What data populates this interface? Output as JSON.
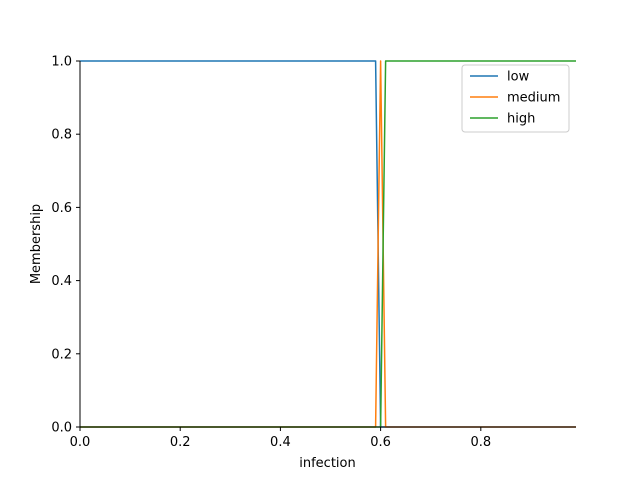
{
  "chart_data": {
    "type": "line",
    "title": "",
    "xlabel": "infection",
    "ylabel": "Membership",
    "xlim": [
      0.0,
      0.99
    ],
    "ylim": [
      0.0,
      1.0
    ],
    "xticks": [
      0.0,
      0.2,
      0.4,
      0.6,
      0.8
    ],
    "xtick_labels": [
      "0.0",
      "0.2",
      "0.4",
      "0.6",
      "0.8"
    ],
    "yticks": [
      0.0,
      0.2,
      0.4,
      0.6,
      0.8,
      1.0
    ],
    "ytick_labels": [
      "0.0",
      "0.2",
      "0.4",
      "0.6",
      "0.8",
      "1.0"
    ],
    "grid": false,
    "legend_position": "top-right",
    "series": [
      {
        "name": "low",
        "color": "#1f77b4",
        "x": [
          0.0,
          0.59,
          0.6,
          0.99
        ],
        "y": [
          1.0,
          1.0,
          0.0,
          0.0
        ]
      },
      {
        "name": "medium",
        "color": "#ff7f0e",
        "x": [
          0.0,
          0.59,
          0.6,
          0.61,
          0.99
        ],
        "y": [
          0.0,
          0.0,
          1.0,
          0.0,
          0.0
        ]
      },
      {
        "name": "high",
        "color": "#2ca02c",
        "x": [
          0.0,
          0.6,
          0.61,
          0.99
        ],
        "y": [
          0.0,
          0.0,
          1.0,
          1.0
        ]
      }
    ]
  }
}
